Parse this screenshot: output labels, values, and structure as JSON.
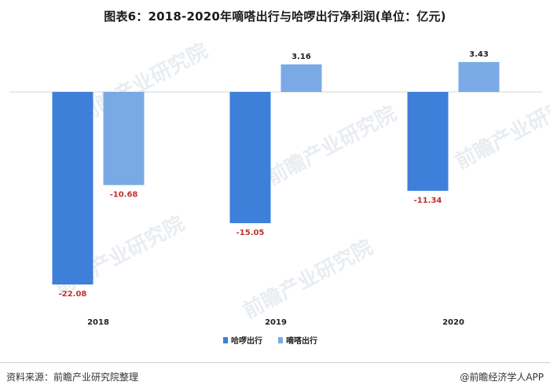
{
  "title": "图表6：2018-2020年嘀嗒出行与哈啰出行净利润(单位：亿元)",
  "chart_data": {
    "type": "bar",
    "categories": [
      "2018",
      "2019",
      "2020"
    ],
    "series": [
      {
        "name": "哈啰出行",
        "values": [
          -22.08,
          -15.05,
          -11.34
        ],
        "color": "#3d7fd9"
      },
      {
        "name": "嘀嗒出行",
        "values": [
          -10.68,
          3.16,
          3.43
        ],
        "color": "#7aaae6"
      }
    ],
    "ylim": [
      -24,
      4
    ],
    "grid": false,
    "legend": "bottom-center",
    "label_colors": {
      "negative": "#c0312b",
      "positive": "#222222"
    }
  },
  "watermark": "前瞻产业研究院",
  "footer": {
    "source": "资料来源：前瞻产业研究院整理",
    "brand": "@前瞻经济学人APP"
  }
}
